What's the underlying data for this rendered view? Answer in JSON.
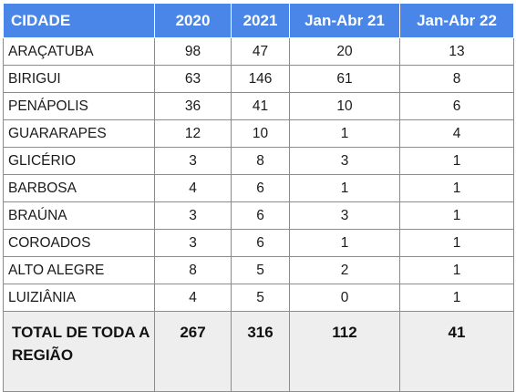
{
  "table": {
    "headers": [
      "CIDADE",
      "2020",
      "2021",
      "Jan-Abr 21",
      "Jan-Abr 22"
    ],
    "rows": [
      [
        "ARAÇATUBA",
        "98",
        "47",
        "20",
        "13"
      ],
      [
        "BIRIGUI",
        "63",
        "146",
        "61",
        "8"
      ],
      [
        "PENÁPOLIS",
        "36",
        "41",
        "10",
        "6"
      ],
      [
        "GUARARAPES",
        "12",
        "10",
        "1",
        "4"
      ],
      [
        "GLICÉRIO",
        "3",
        "8",
        "3",
        "1"
      ],
      [
        "BARBOSA",
        "4",
        "6",
        "1",
        "1"
      ],
      [
        "BRAÚNA",
        "3",
        "6",
        "3",
        "1"
      ],
      [
        "COROADOS",
        "3",
        "6",
        "1",
        "1"
      ],
      [
        "ALTO ALEGRE",
        "8",
        "5",
        "2",
        "1"
      ],
      [
        "LUIZIÂNIA",
        "4",
        "5",
        "0",
        "1"
      ]
    ],
    "total": [
      "TOTAL DE TODA A REGIÃO",
      "267",
      "316",
      "112",
      "41"
    ]
  }
}
